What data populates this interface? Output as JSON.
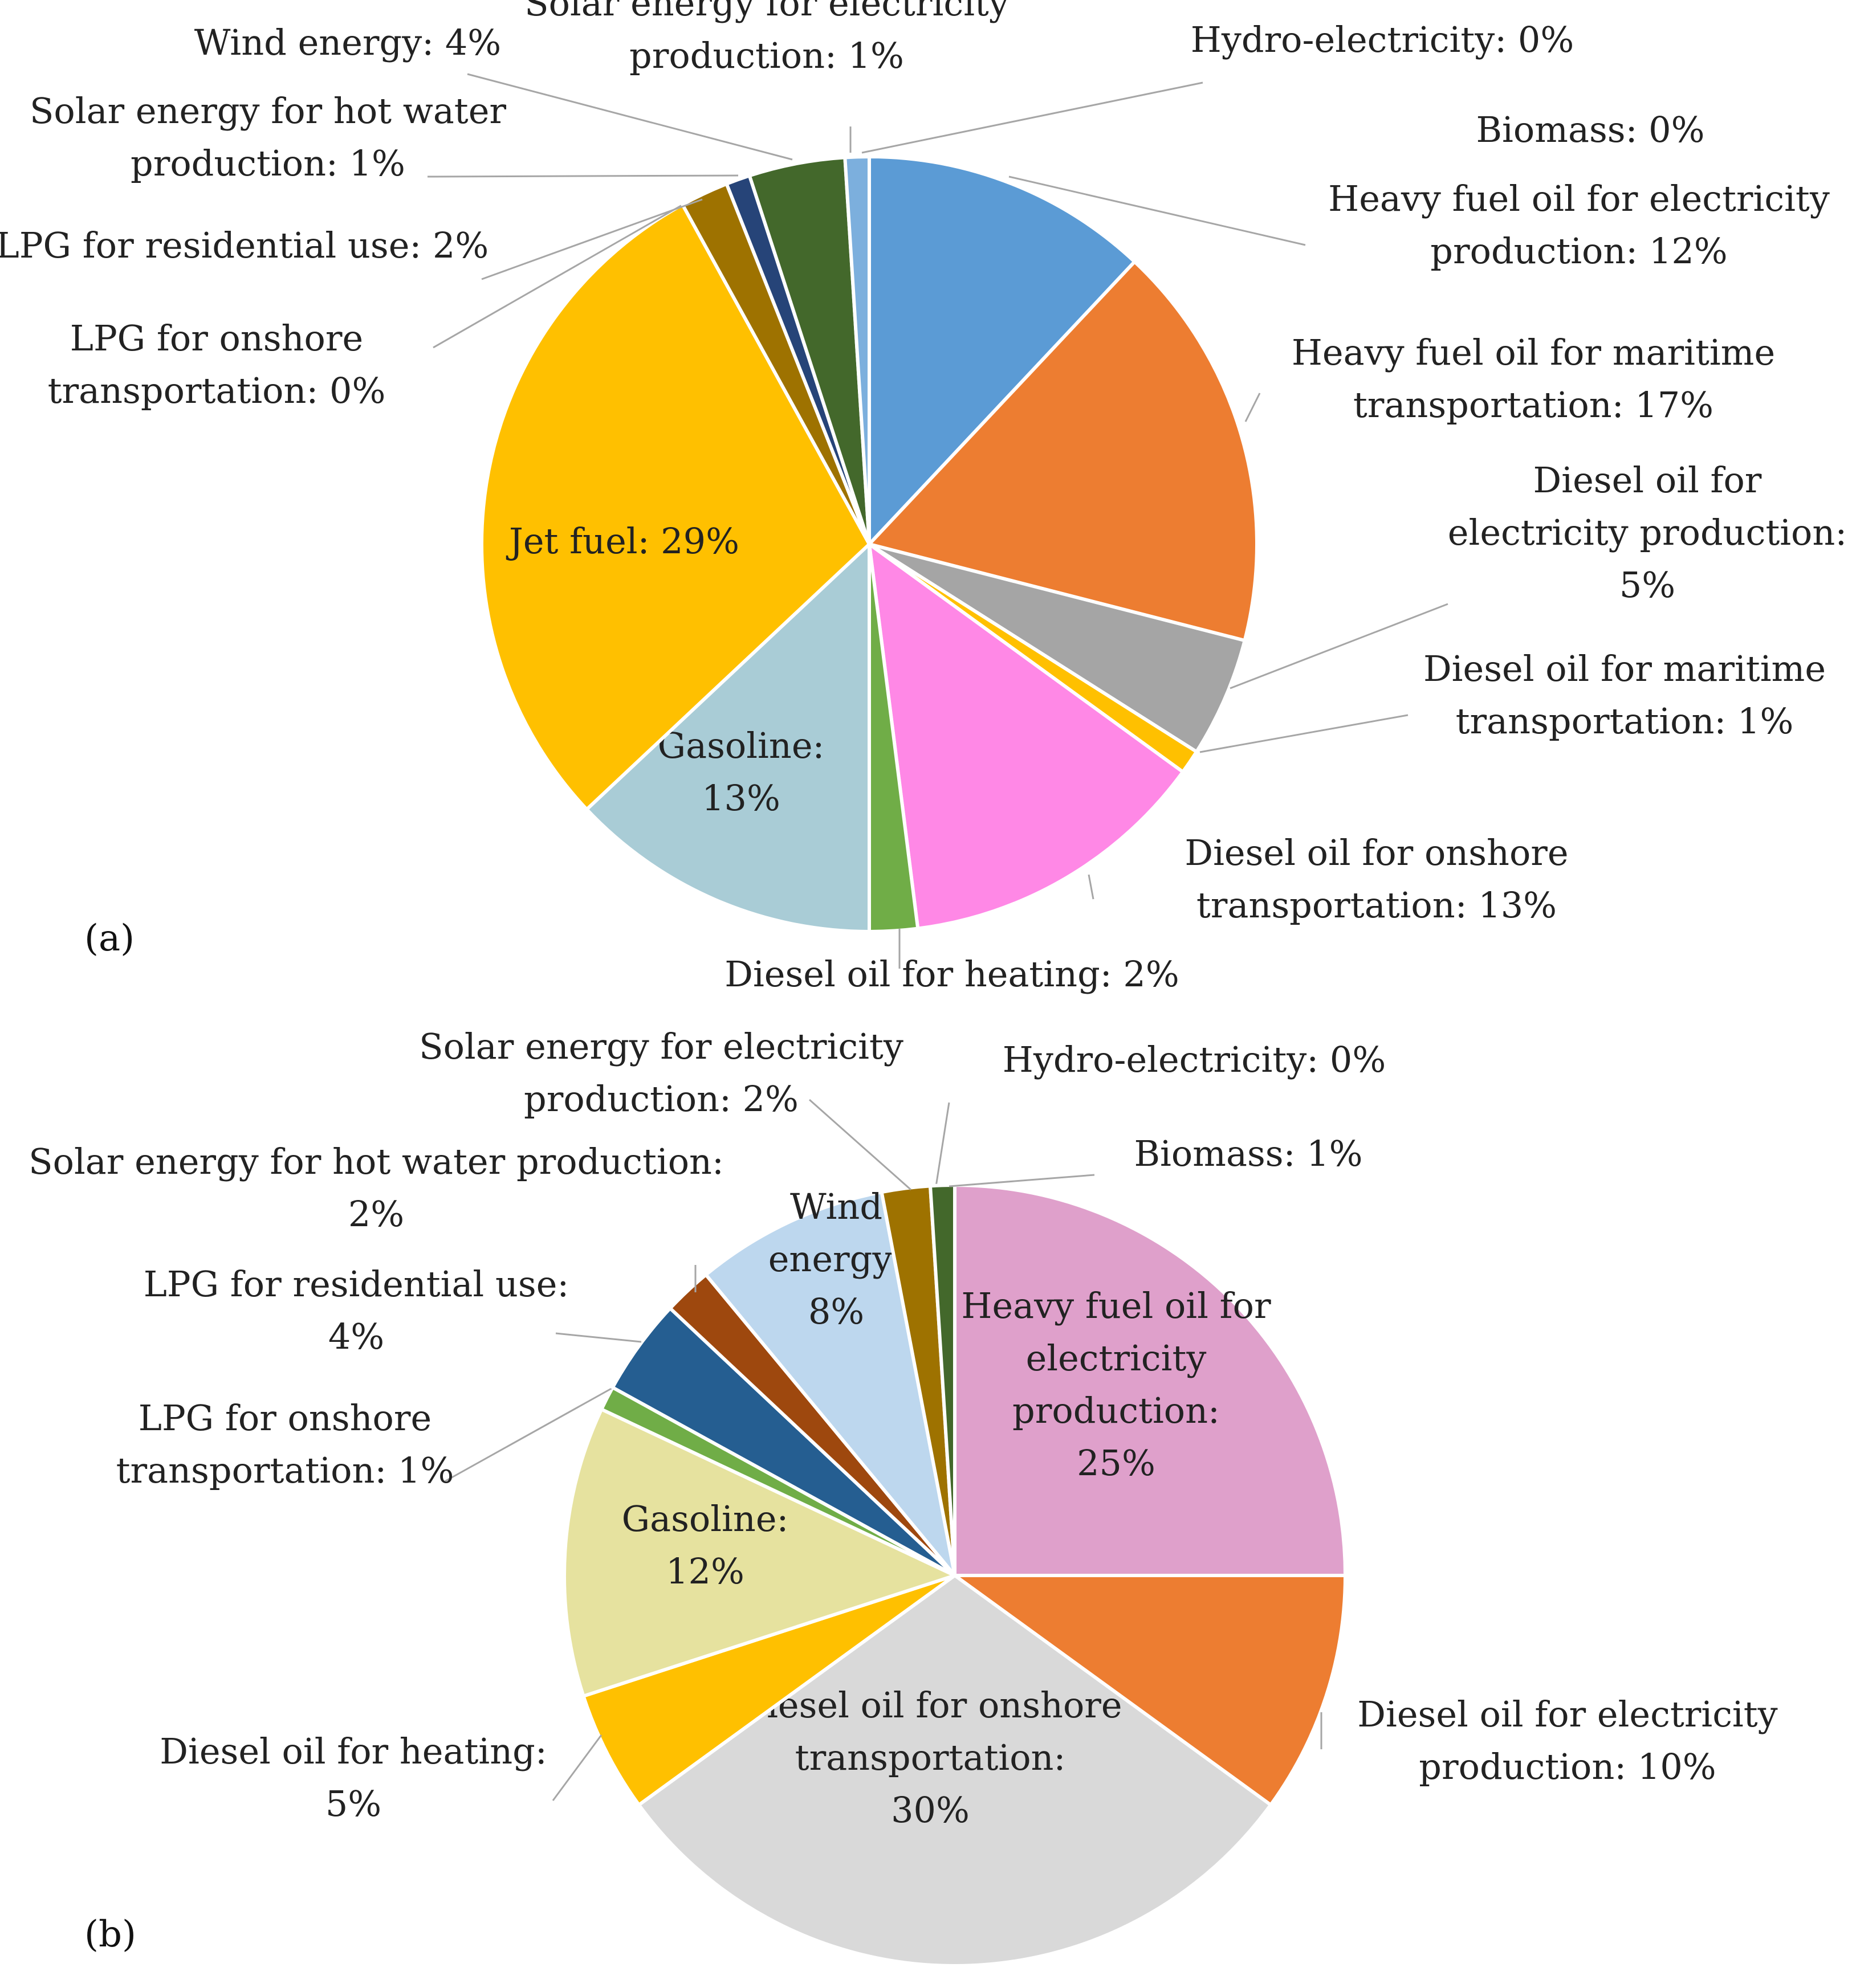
{
  "figure": {
    "panel_a_label": "(a)",
    "panel_b_label": "(b)"
  },
  "chart_data": [
    {
      "type": "pie",
      "panel": "(a)",
      "start_angle_deg": 0,
      "direction": "clockwise",
      "slices": [
        {
          "name": "Heavy fuel oil for electricity production",
          "value": 12,
          "color": "#5B9BD5",
          "label_lines": [
            "Heavy fuel oil for electricity",
            "production: 12%"
          ]
        },
        {
          "name": "Heavy fuel oil for maritime transportation",
          "value": 17,
          "color": "#ED7D31",
          "label_lines": [
            "Heavy fuel oil for maritime",
            "transportation: 17%"
          ]
        },
        {
          "name": "Diesel oil for electricity production",
          "value": 5,
          "color": "#A5A5A5",
          "label_lines": [
            "Diesel oil for",
            "electricity production:",
            "5%"
          ]
        },
        {
          "name": "Diesel oil for maritime transportation",
          "value": 1,
          "color": "#FFC000",
          "label_lines": [
            "Diesel oil for maritime",
            "transportation: 1%"
          ]
        },
        {
          "name": "Diesel oil for onshore transportation",
          "value": 13,
          "color": "#FF88E6",
          "label_lines": [
            "Diesel oil for onshore",
            "transportation: 13%"
          ]
        },
        {
          "name": "Diesel oil for heating",
          "value": 2,
          "color": "#70AD47",
          "label_lines": [
            "Diesel oil for heating: 2%"
          ]
        },
        {
          "name": "Gasoline",
          "value": 13,
          "color": "#A9CCD6",
          "label_lines": [
            "Gasoline:",
            "13%"
          ]
        },
        {
          "name": "Jet fuel",
          "value": 29,
          "color": "#FFC000",
          "label_lines": [
            "Jet fuel: 29%"
          ]
        },
        {
          "name": "LPG for onshore transportation",
          "value": 0,
          "color": "#264478",
          "label_lines": [
            "LPG for onshore",
            "transportation: 0%"
          ]
        },
        {
          "name": "LPG for residential use",
          "value": 2,
          "color": "#9E7200",
          "label_lines": [
            "LPG for residential use: 2%"
          ]
        },
        {
          "name": "Solar energy for hot water production",
          "value": 1,
          "color": "#264478",
          "label_lines": [
            "Solar energy for hot water",
            "production: 1%"
          ]
        },
        {
          "name": "Wind energy",
          "value": 4,
          "color": "#43682B",
          "label_lines": [
            "Wind energy: 4%"
          ]
        },
        {
          "name": "Solar energy for electricity production",
          "value": 1,
          "color": "#7CAFDD",
          "label_lines": [
            "Solar energy for electricity",
            "production: 1%"
          ]
        },
        {
          "name": "Hydro-electricity",
          "value": 0,
          "color": "#F1975A",
          "label_lines": [
            "Hydro-electricity: 0%"
          ]
        },
        {
          "name": "Biomass",
          "value": 0,
          "color": "#B7B7B7",
          "label_lines": [
            "Biomass: 0%"
          ]
        }
      ]
    },
    {
      "type": "pie",
      "panel": "(b)",
      "start_angle_deg": 0,
      "direction": "clockwise",
      "slices": [
        {
          "name": "Heavy fuel oil for electricity production",
          "value": 25,
          "color": "#DFA0CB",
          "label_lines": [
            "Heavy fuel oil for",
            "electricity",
            "production:",
            "25%"
          ]
        },
        {
          "name": "Diesel oil for electricity production",
          "value": 10,
          "color": "#ED7D31",
          "label_lines": [
            "Diesel oil for electricity",
            "production: 10%"
          ]
        },
        {
          "name": "Diesel oil for onshore transportation",
          "value": 30,
          "color": "#D9D9D9",
          "label_lines": [
            "Diesel oil for onshore",
            "transportation:",
            "30%"
          ]
        },
        {
          "name": "Diesel oil for heating",
          "value": 5,
          "color": "#FFC000",
          "label_lines": [
            "Diesel oil for heating:",
            "5%"
          ]
        },
        {
          "name": "Gasoline",
          "value": 12,
          "color": "#E6E29F",
          "label_lines": [
            "Gasoline:",
            "12%"
          ]
        },
        {
          "name": "LPG for onshore transportation",
          "value": 1,
          "color": "#70AD47",
          "label_lines": [
            "LPG for onshore",
            "transportation: 1%"
          ]
        },
        {
          "name": "LPG for residential use",
          "value": 4,
          "color": "#255E91",
          "label_lines": [
            "LPG for residential use:",
            "4%"
          ]
        },
        {
          "name": "Solar energy for hot water production",
          "value": 2,
          "color": "#9E480E",
          "label_lines": [
            "Solar energy for hot water production:",
            "2%"
          ]
        },
        {
          "name": "Wind energy",
          "value": 8,
          "color": "#BDD7EE",
          "label_lines": [
            "Wind",
            "energy:",
            "8%"
          ]
        },
        {
          "name": "Solar energy for electricity production",
          "value": 2,
          "color": "#9E7200",
          "label_lines": [
            "Solar energy for electricity",
            "production: 2%"
          ]
        },
        {
          "name": "Hydro-electricity",
          "value": 0,
          "color": "#A5A5A5",
          "label_lines": [
            "Hydro-electricity: 0%"
          ]
        },
        {
          "name": "Biomass",
          "value": 1,
          "color": "#43682B",
          "label_lines": [
            "Biomass: 1%"
          ]
        }
      ]
    }
  ]
}
